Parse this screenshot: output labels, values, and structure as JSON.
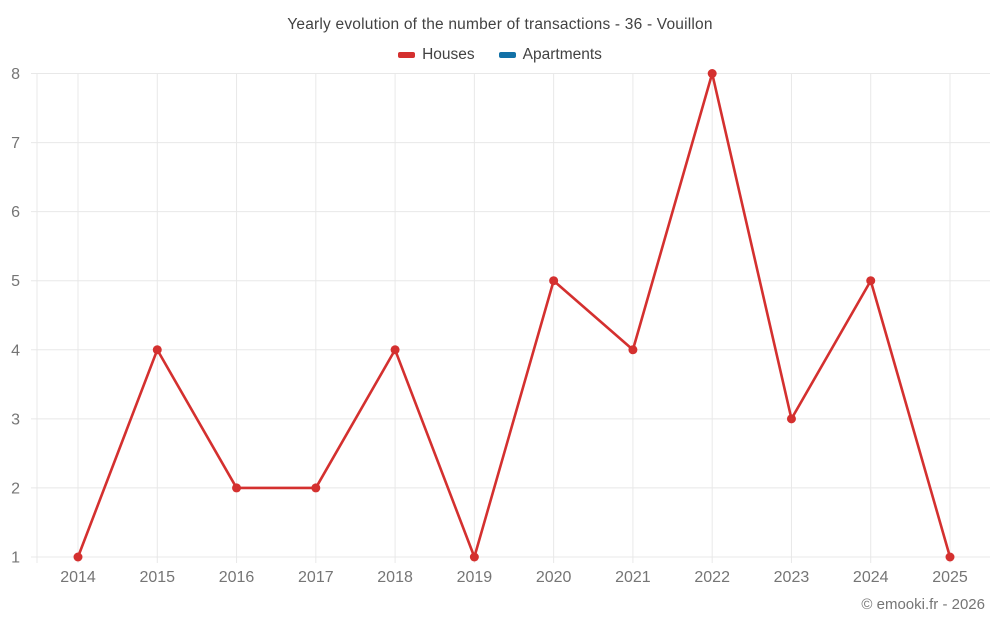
{
  "chart_data": {
    "type": "line",
    "title": "Yearly evolution of the number of transactions - 36 - Vouillon",
    "x": [
      "2014",
      "2015",
      "2016",
      "2017",
      "2018",
      "2019",
      "2020",
      "2021",
      "2022",
      "2023",
      "2024",
      "2025"
    ],
    "series": [
      {
        "name": "Houses",
        "color": "#d4302f",
        "values": [
          1,
          4,
          2,
          2,
          4,
          1,
          5,
          4,
          8,
          3,
          5,
          1
        ]
      },
      {
        "name": "Apartments",
        "color": "#1271a7",
        "values": []
      }
    ],
    "ylim": [
      1,
      8
    ],
    "yticks": [
      1,
      2,
      3,
      4,
      5,
      6,
      7,
      8
    ],
    "grid": true,
    "legend_position": "top",
    "xlabel": "",
    "ylabel": ""
  },
  "footer": {
    "copyright": "© emooki.fr - 2026"
  },
  "colors": {
    "background": "#ffffff",
    "title_text": "#424242",
    "axis_label_text": "#757575",
    "gridline": "#e8e8e8"
  }
}
